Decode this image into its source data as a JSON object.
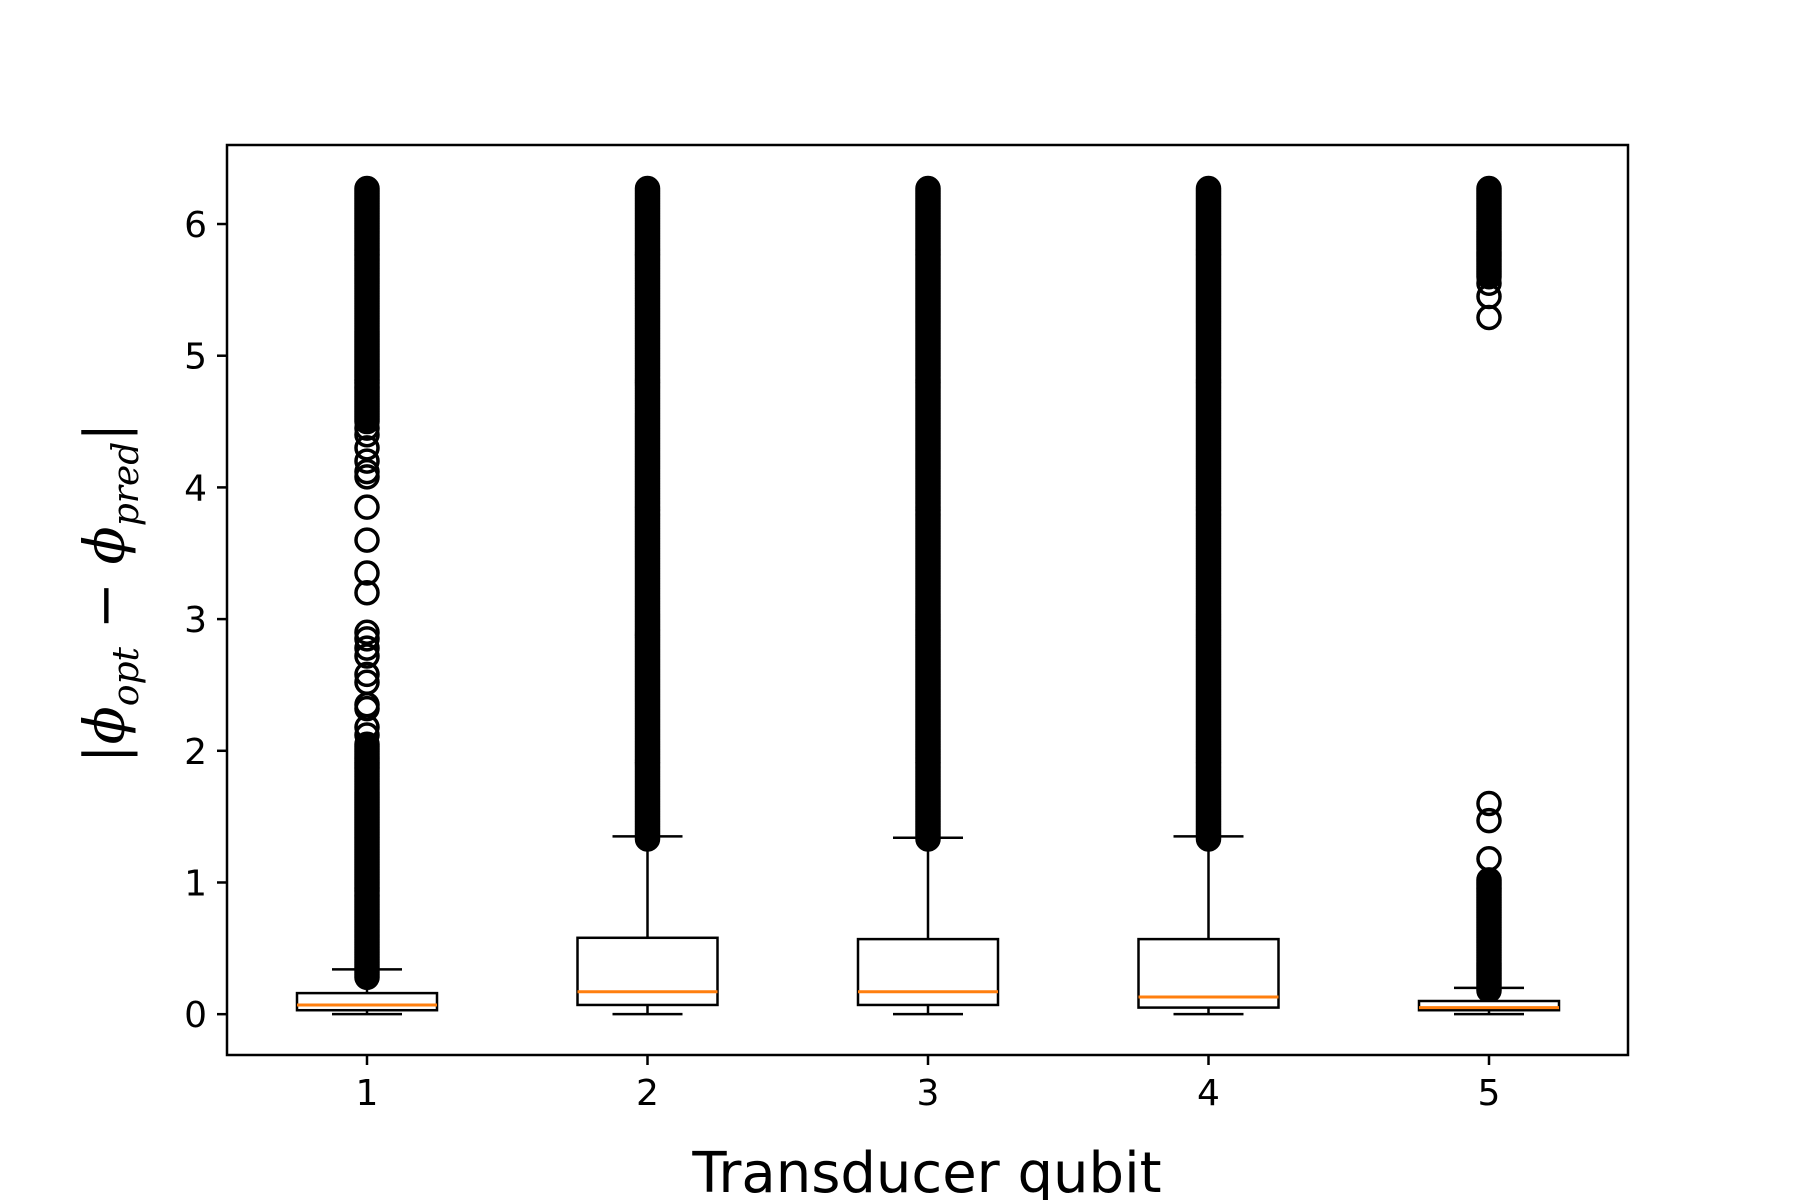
{
  "chart_data": {
    "type": "box",
    "categories": [
      "1",
      "2",
      "3",
      "4",
      "5"
    ],
    "xlabel": "Transducer qubit",
    "ylabel": {
      "open": "|",
      "phi1": "ϕ",
      "sub1": "opt",
      "minus": " − ",
      "phi2": "ϕ",
      "sub2": "pred",
      "close": "|"
    },
    "ylim": [
      -0.31,
      6.6
    ],
    "yticks": [
      "0",
      "1",
      "2",
      "3",
      "4",
      "5",
      "6"
    ],
    "grid": false,
    "colors": {
      "box": "#000000",
      "median": "#ff7f0e",
      "flier": "#000000"
    },
    "boxes": [
      {
        "category": "1",
        "whisker_low": 0.0,
        "q1": 0.03,
        "median": 0.07,
        "q3": 0.16,
        "whisker_high": 0.34,
        "fliers_dense": [
          0.28,
          2.05
        ],
        "fliers_points": [
          2.12,
          2.18,
          2.32,
          2.35,
          2.52,
          2.58,
          2.72,
          2.78,
          2.85,
          2.9,
          3.2,
          3.35,
          3.6,
          3.85,
          4.08,
          4.12,
          4.2,
          4.3,
          4.4,
          4.45
        ],
        "fliers_dense_top": [
          4.5,
          6.27
        ]
      },
      {
        "category": "2",
        "whisker_low": 0.0,
        "q1": 0.07,
        "median": 0.17,
        "q3": 0.58,
        "whisker_high": 1.35,
        "fliers_dense": [
          1.33,
          6.27
        ],
        "fliers_points": [],
        "fliers_dense_top": null
      },
      {
        "category": "3",
        "whisker_low": 0.0,
        "q1": 0.07,
        "median": 0.17,
        "q3": 0.57,
        "whisker_high": 1.34,
        "fliers_dense": [
          1.33,
          6.27
        ],
        "fliers_points": [],
        "fliers_dense_top": null
      },
      {
        "category": "4",
        "whisker_low": 0.0,
        "q1": 0.05,
        "median": 0.13,
        "q3": 0.57,
        "whisker_high": 1.35,
        "fliers_dense": [
          1.33,
          6.27
        ],
        "fliers_points": [],
        "fliers_dense_top": null
      },
      {
        "category": "5",
        "whisker_low": 0.0,
        "q1": 0.03,
        "median": 0.05,
        "q3": 0.1,
        "whisker_high": 0.2,
        "fliers_dense": [
          0.18,
          1.02
        ],
        "fliers_points": [
          1.18,
          1.47,
          1.6,
          5.29,
          5.45,
          5.55
        ],
        "fliers_dense_top": [
          5.6,
          6.27
        ]
      }
    ]
  }
}
